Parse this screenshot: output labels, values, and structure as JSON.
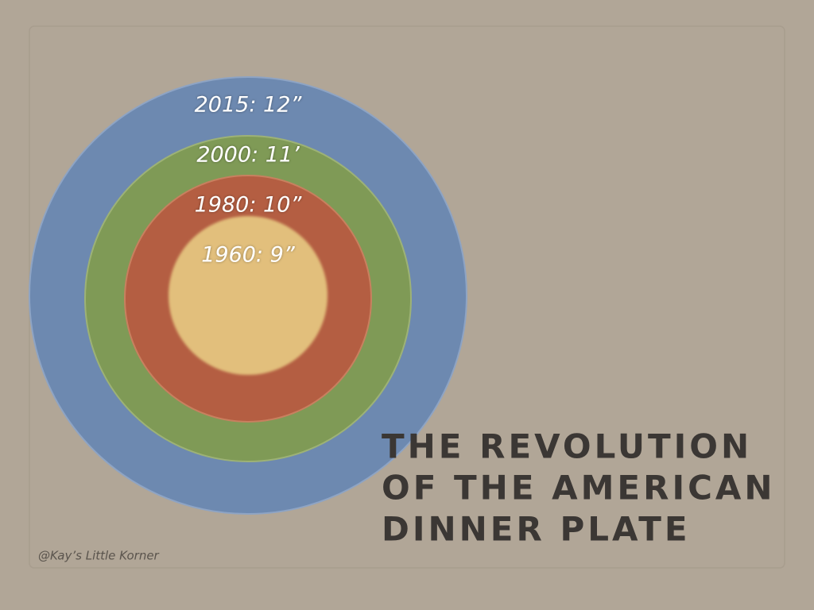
{
  "diagram": {
    "rings": [
      {
        "label": "2015: 12”"
      },
      {
        "label": "2000: 11’"
      },
      {
        "label": "1980: 10”"
      },
      {
        "label": "1960: 9”"
      }
    ],
    "title_lines": [
      "THE REVOLUTION",
      "OF THE AMERICAN",
      "DINNER PLATE"
    ],
    "credit": "@Kay’s Little Korner"
  }
}
